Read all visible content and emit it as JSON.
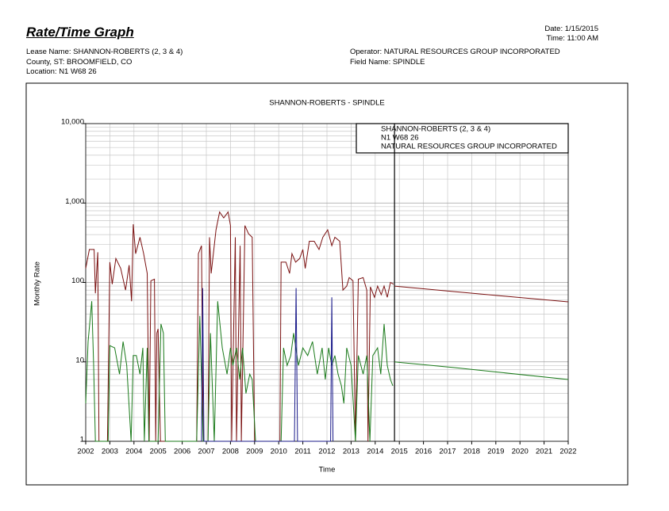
{
  "header": {
    "title": "Rate/Time Graph",
    "date": "Date:  1/15/2015",
    "time": "Time:  11:00 AM",
    "lease": "Lease Name: SHANNON-ROBERTS (2, 3 & 4)",
    "county": "County, ST: BROOMFIELD, CO",
    "location": "Location: N1 W68 26",
    "operator": "Operator: NATURAL RESOURCES GROUP INCORPORATED",
    "field": "Field Name: SPINDLE"
  },
  "chart_data": {
    "type": "line",
    "title": "SHANNON-ROBERTS - SPINDLE",
    "xlabel": "Time",
    "ylabel": "Monthly Rate",
    "legend_lines": [
      "SHANNON-ROBERTS (2, 3 & 4)",
      "N1 W68 26",
      "NATURAL RESOURCES GROUP INCORPORATED"
    ],
    "xlim": [
      2002,
      2022
    ],
    "xticks": [
      2002,
      2003,
      2004,
      2005,
      2006,
      2007,
      2008,
      2009,
      2010,
      2011,
      2012,
      2013,
      2014,
      2015,
      2016,
      2017,
      2018,
      2019,
      2020,
      2021,
      2022
    ],
    "ylim": [
      1,
      10000
    ],
    "yticks": [
      1,
      10,
      100,
      {
        "value": 1000,
        "label": "1,000"
      },
      {
        "value": 10000,
        "label": "10,000"
      }
    ],
    "log_y": true,
    "grid": true,
    "minor_grid": true,
    "forecast_start": 2014.8,
    "series": [
      {
        "color": "#7a1010",
        "x": [
          2002.0,
          2002.15,
          2002.35,
          2002.4,
          2002.5,
          2002.55,
          2002.9,
          2003.0,
          2003.1,
          2003.25,
          2003.45,
          2003.65,
          2003.8,
          2003.9,
          2003.97,
          2004.07,
          2004.25,
          2004.4,
          2004.55,
          2004.63,
          2004.7,
          2004.85,
          2004.9,
          2004.95,
          2005.0,
          2005.1,
          2006.6,
          2006.67,
          2006.8,
          2006.87,
          2007.07,
          2007.13,
          2007.2,
          2007.4,
          2007.55,
          2007.72,
          2007.9,
          2008.0,
          2008.05,
          2008.2,
          2008.25,
          2008.4,
          2008.45,
          2008.6,
          2008.75,
          2008.9,
          2009.0,
          2010.05,
          2010.1,
          2010.3,
          2010.45,
          2010.55,
          2010.7,
          2010.87,
          2011.0,
          2011.1,
          2011.27,
          2011.47,
          2011.67,
          2011.83,
          2012.03,
          2012.2,
          2012.33,
          2012.53,
          2012.66,
          2012.82,
          2012.92,
          2013.08,
          2013.18,
          2013.3,
          2013.5,
          2013.65,
          2013.7,
          2013.8,
          2013.97,
          2014.1,
          2014.25,
          2014.37,
          2014.5,
          2014.63,
          2014.76
        ],
        "values": [
          150,
          260,
          260,
          73,
          240,
          1,
          1,
          180,
          95,
          200,
          150,
          80,
          165,
          58,
          540,
          230,
          370,
          230,
          130,
          1,
          105,
          110,
          1,
          23,
          26,
          1,
          1,
          230,
          290,
          1,
          1,
          370,
          130,
          460,
          770,
          650,
          770,
          520,
          1,
          370,
          1,
          290,
          1,
          520,
          410,
          370,
          1,
          1,
          180,
          180,
          130,
          230,
          180,
          200,
          260,
          150,
          330,
          330,
          260,
          370,
          460,
          290,
          370,
          330,
          80,
          90,
          115,
          105,
          1,
          110,
          115,
          80,
          1,
          88,
          65,
          90,
          70,
          90,
          65,
          100,
          95
        ]
      },
      {
        "color": "#1a7a1a",
        "x": [
          2002.0,
          2002.1,
          2002.25,
          2002.33,
          2002.4,
          2002.93,
          2003.0,
          2003.2,
          2003.4,
          2003.55,
          2003.7,
          2003.88,
          2003.97,
          2004.1,
          2004.25,
          2004.37,
          2004.43,
          2004.55,
          2004.62,
          2005.0,
          2005.12,
          2005.22,
          2005.3,
          2006.6,
          2006.73,
          2006.87,
          2007.07,
          2007.17,
          2007.33,
          2007.47,
          2007.66,
          2007.86,
          2008.0,
          2008.1,
          2008.25,
          2008.38,
          2008.5,
          2008.64,
          2008.8,
          2008.9,
          2009.04,
          2010.1,
          2010.2,
          2010.35,
          2010.5,
          2010.62,
          2010.82,
          2011.0,
          2011.2,
          2011.4,
          2011.6,
          2011.8,
          2011.93,
          2012.07,
          2012.2,
          2012.33,
          2012.46,
          2012.6,
          2012.7,
          2012.82,
          2013.0,
          2013.18,
          2013.3,
          2013.5,
          2013.65,
          2013.78,
          2013.9,
          2014.1,
          2014.23,
          2014.37,
          2014.5,
          2014.63,
          2014.73
        ],
        "values": [
          3,
          18,
          58,
          9,
          1,
          1,
          16,
          15,
          7,
          18,
          9,
          1,
          12,
          12,
          7,
          15,
          1,
          15,
          1,
          1,
          30,
          23,
          1,
          1,
          38,
          1,
          1,
          23,
          1,
          58,
          15,
          7,
          15,
          9,
          15,
          6,
          15,
          4,
          7,
          6,
          1,
          1,
          15,
          9,
          12,
          23,
          9,
          15,
          12,
          18,
          7,
          15,
          6,
          15,
          9,
          12,
          7,
          5,
          3,
          15,
          9,
          1,
          12,
          7,
          12,
          1,
          12,
          15,
          7,
          30,
          9,
          6,
          5
        ]
      },
      {
        "color": "#1a1a8a",
        "x": [
          2006.8,
          2006.85,
          2006.9,
          2010.65,
          2010.72,
          2010.78,
          2012.15,
          2012.2,
          2012.25
        ],
        "values": [
          1,
          85,
          1,
          1,
          85,
          1,
          1,
          65,
          1
        ]
      },
      {
        "color": "#7a1010",
        "x": [
          2014.8,
          2017.2,
          2022
        ],
        "values": [
          90,
          77,
          57
        ]
      },
      {
        "color": "#1a7a1a",
        "x": [
          2014.8,
          2017.2,
          2022
        ],
        "values": [
          10,
          8.5,
          6
        ]
      }
    ]
  }
}
